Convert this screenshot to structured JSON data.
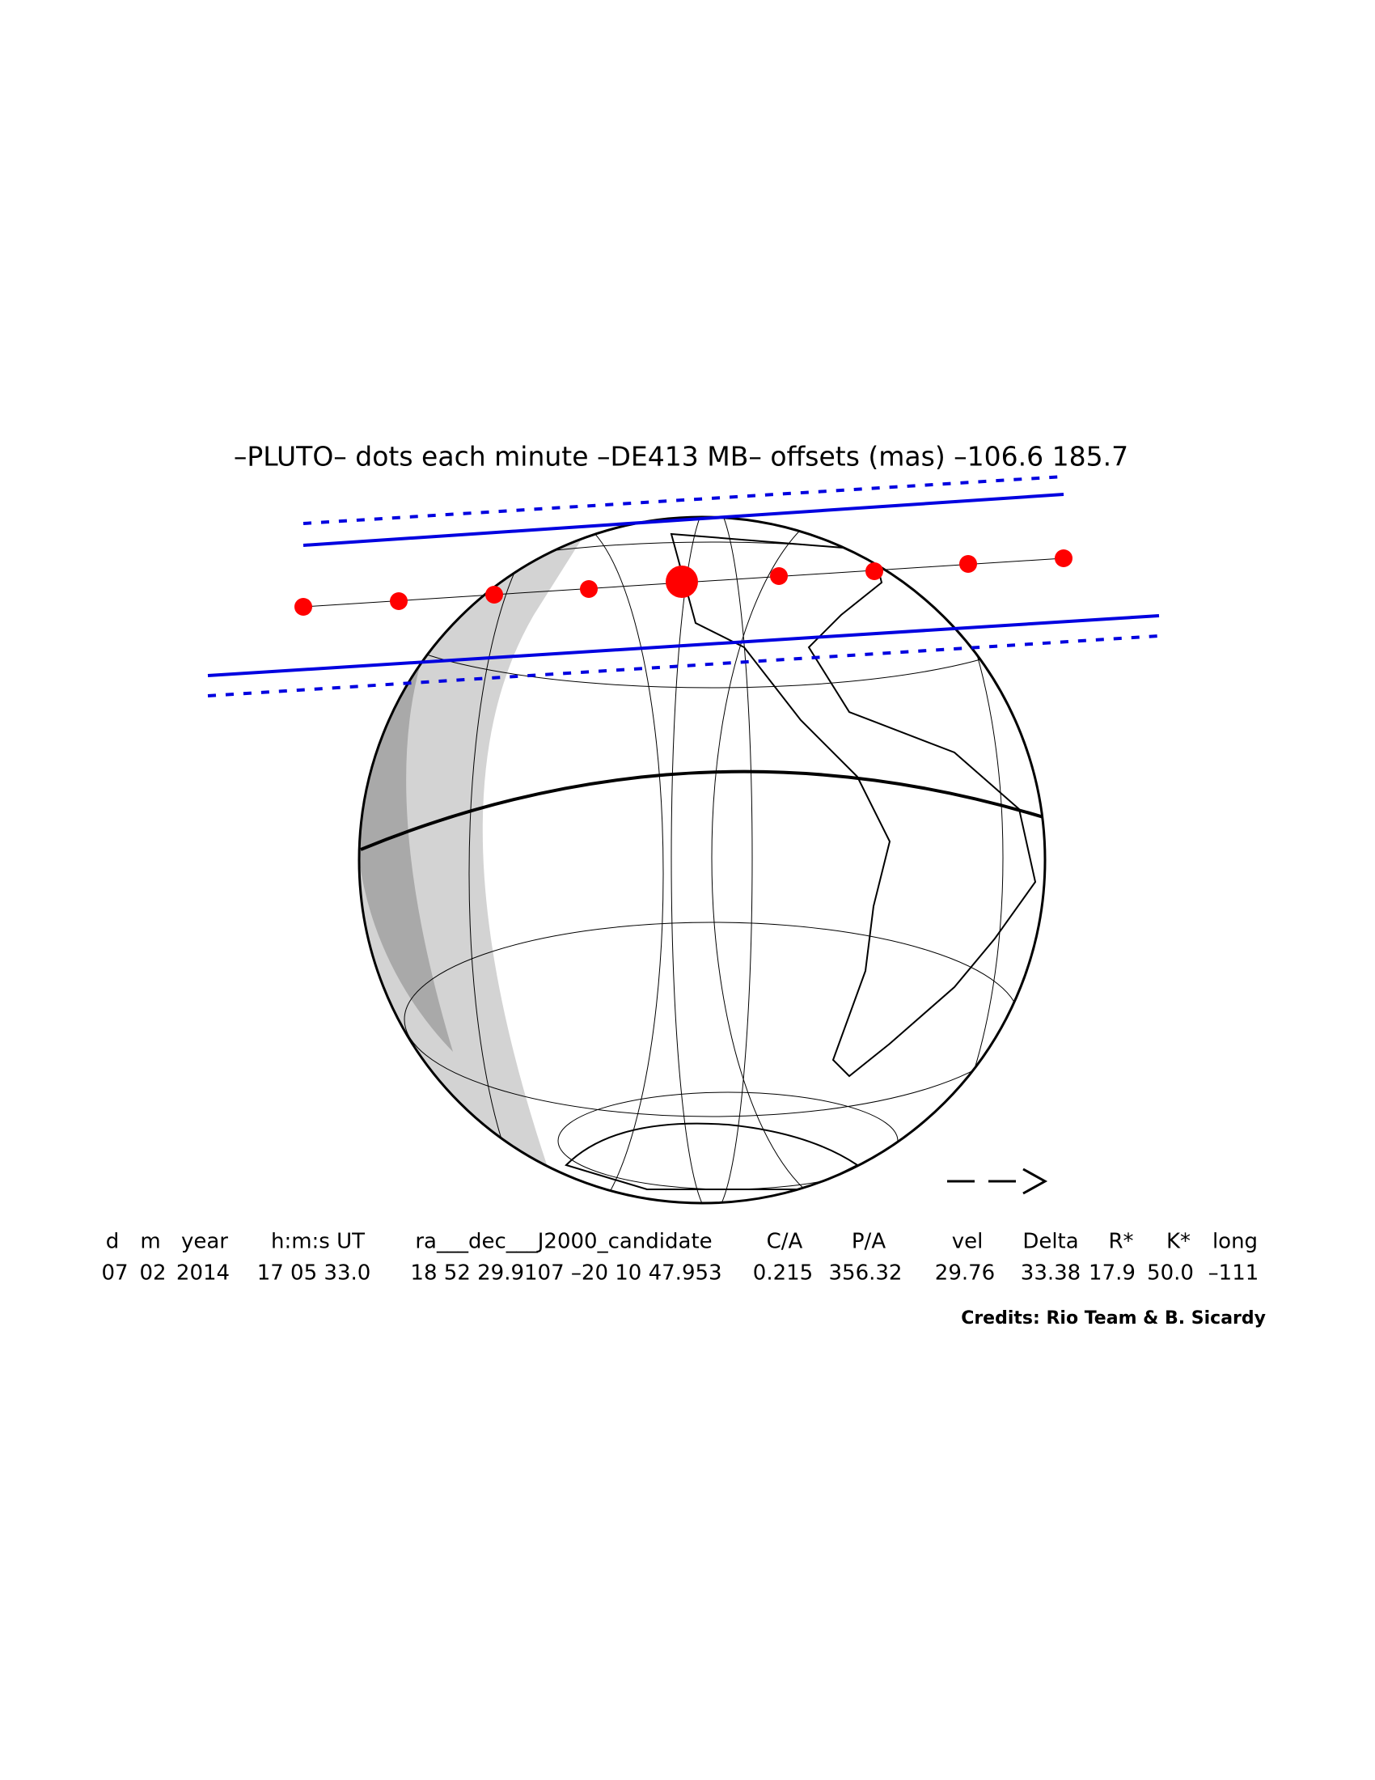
{
  "title": "–PLUTO– dots each minute –DE413 MB– offsets (mas) –106.6   185.7",
  "table": {
    "headers": [
      "d",
      "m",
      "year",
      "h:m:s UT",
      "ra___dec___J2000_candidate",
      "C/A",
      "P/A",
      "vel",
      "Delta",
      "R*",
      "K*",
      "long"
    ],
    "rows": [
      [
        "07",
        "02",
        "2014",
        "17 05 33.0",
        "18 52 29.9107 –20 10 47.953",
        "0.215",
        "356.32",
        "29.76",
        "33.38",
        "17.9",
        "50.0",
        "–111"
      ]
    ]
  },
  "credits": "Credits: Rio Team & B. Sicardy"
}
